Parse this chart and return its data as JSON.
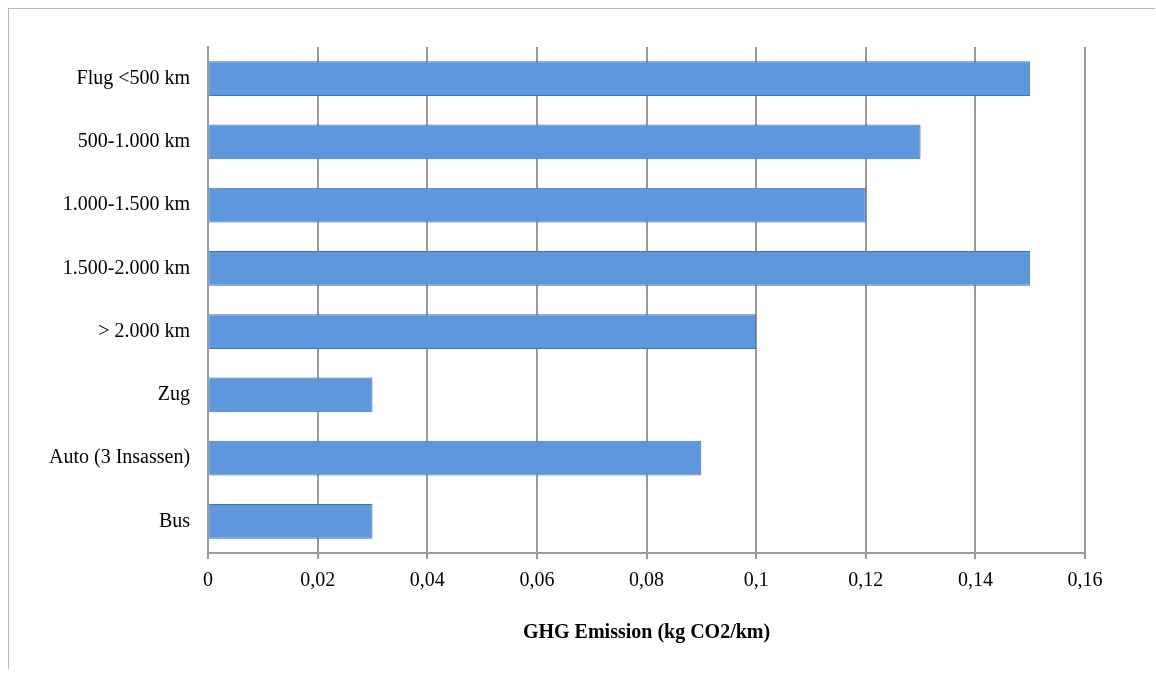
{
  "chart_data": {
    "type": "bar",
    "orientation": "horizontal",
    "xlabel": "GHG Emission (kg CO2/km)",
    "categories": [
      "Flug <500 km",
      "500-1.000 km",
      "1.000-1.500 km",
      "1.500-2.000 km",
      "> 2.000 km",
      "Zug",
      "Auto (3 Insassen)",
      "Bus"
    ],
    "values": [
      0.15,
      0.13,
      0.12,
      0.15,
      0.1,
      0.03,
      0.09,
      0.03
    ],
    "color": "#5f97dc",
    "xlim": [
      0,
      0.16
    ],
    "xticks": [
      0,
      {
        "value": 0.02,
        "label": "0,02"
      },
      {
        "value": 0.04,
        "label": "0,04"
      },
      {
        "value": 0.06,
        "label": "0,06"
      },
      {
        "value": 0.08,
        "label": "0,08"
      },
      {
        "value": 0.1,
        "label": "0,1"
      },
      {
        "value": 0.12,
        "label": "0,12"
      },
      {
        "value": 0.14,
        "label": "0,14"
      },
      {
        "value": 0.16,
        "label": "0,16"
      }
    ],
    "grid": "x",
    "legend": false
  }
}
